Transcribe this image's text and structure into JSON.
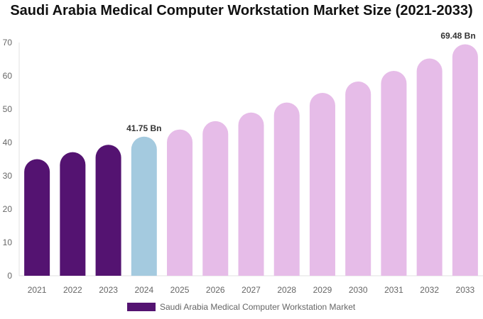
{
  "chart_data": {
    "type": "bar",
    "title": "Saudi Arabia Medical Computer Workstation Market Size (2021-2033)",
    "categories": [
      "2021",
      "2022",
      "2023",
      "2024",
      "2025",
      "2026",
      "2027",
      "2028",
      "2029",
      "2030",
      "2031",
      "2032",
      "2033"
    ],
    "series": [
      {
        "name": "Saudi Arabia Medical Computer Workstation Market",
        "values": [
          35.0,
          37.1,
          39.3,
          41.75,
          43.9,
          46.4,
          49.0,
          52.0,
          54.9,
          58.3,
          61.5,
          65.2,
          69.48
        ]
      }
    ],
    "data_labels": {
      "3": "41.75 Bn",
      "12": "69.48 Bn"
    },
    "bar_colors": {
      "historical": "#541371",
      "base_year": "#a4cadf",
      "forecast": "#e6bce8"
    },
    "ylim": [
      0,
      70
    ],
    "yticks": [
      0,
      10,
      20,
      30,
      40,
      50,
      60,
      70
    ],
    "xlabel": "",
    "ylabel": "",
    "grid": false,
    "legend_position": "bottom"
  }
}
